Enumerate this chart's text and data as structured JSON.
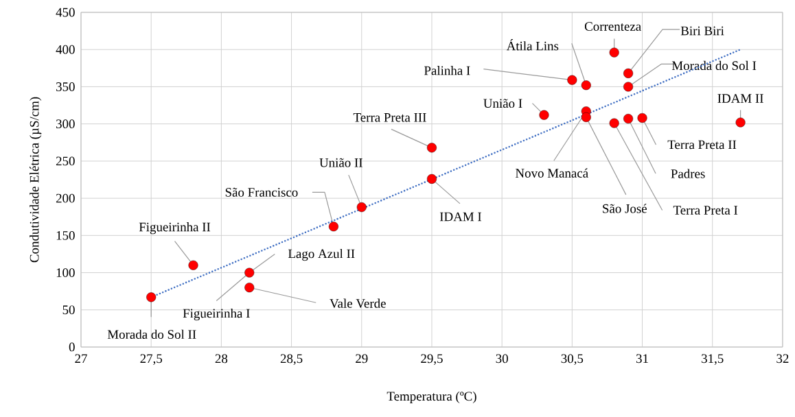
{
  "chart_data": {
    "type": "scatter",
    "xlabel": "Temperatura (ºC)",
    "ylabel": "Condutividade Elétrica (µS/cm)",
    "xlim": [
      27,
      32
    ],
    "ylim": [
      0,
      450
    ],
    "xticks": [
      27,
      {
        "value": 27.5,
        "label": "27,5"
      },
      28,
      {
        "value": 28.5,
        "label": "28,5"
      },
      29,
      {
        "value": 29.5,
        "label": "29,5"
      },
      30,
      {
        "value": 30.5,
        "label": "30,5"
      },
      31,
      {
        "value": 31.5,
        "label": "31,5"
      },
      32
    ],
    "yticks": [
      0,
      50,
      100,
      150,
      200,
      250,
      300,
      350,
      400,
      450
    ],
    "grid": true,
    "series": [
      {
        "color": "#ff0000",
        "marker": "circle",
        "x": [
          27.5,
          27.8,
          28.2,
          28.2,
          28.8,
          29,
          29.5,
          29.5,
          30.3,
          30.5,
          30.6,
          30.8,
          30.9,
          30.9,
          31.7,
          30.6,
          30.6,
          30.8,
          30.9,
          31
        ],
        "values": [
          67,
          110,
          100,
          80,
          162,
          188,
          268,
          226,
          312,
          359,
          352,
          396,
          368,
          350,
          302,
          317,
          309,
          301,
          307,
          308
        ]
      },
      {
        "type": "line",
        "color": "#4472c4",
        "marker": "none",
        "line_style": "dotted",
        "x": [
          27.5,
          31.7
        ],
        "values": [
          67,
          400
        ]
      }
    ],
    "annotations": [
      {
        "text": "Morada do Sol II",
        "x": 27.5,
        "y": 67
      },
      {
        "text": "Figueirinha II",
        "x": 27.8,
        "y": 110
      },
      {
        "text": "Lago Azul II",
        "x": 28.2,
        "y": 100
      },
      {
        "text": "Figueirinha I",
        "x": 28.2,
        "y": 100
      },
      {
        "text": "Vale Verde",
        "x": 28.2,
        "y": 80
      },
      {
        "text": "São Francisco",
        "x": 28.8,
        "y": 162
      },
      {
        "text": "União II",
        "x": 29,
        "y": 188
      },
      {
        "text": "Terra Preta III",
        "x": 29.5,
        "y": 268
      },
      {
        "text": "IDAM I",
        "x": 29.5,
        "y": 226
      },
      {
        "text": "União I",
        "x": 30.3,
        "y": 312
      },
      {
        "text": "Palinha I",
        "x": 30.5,
        "y": 359
      },
      {
        "text": "Átila Lins",
        "x": 30.6,
        "y": 352
      },
      {
        "text": "Correnteza",
        "x": 30.8,
        "y": 396
      },
      {
        "text": "Biri Biri",
        "x": 30.9,
        "y": 368
      },
      {
        "text": "Morada do Sol I",
        "x": 30.9,
        "y": 350
      },
      {
        "text": "IDAM II",
        "x": 31.7,
        "y": 302
      },
      {
        "text": "Novo Manacá",
        "x": 30.6,
        "y": 317
      },
      {
        "text": "São José",
        "x": 30.6,
        "y": 309
      },
      {
        "text": "Terra Preta I",
        "x": 30.8,
        "y": 301
      },
      {
        "text": "Padres",
        "x": 30.9,
        "y": 307
      },
      {
        "text": "Terra Preta II",
        "x": 31,
        "y": 308
      }
    ]
  }
}
